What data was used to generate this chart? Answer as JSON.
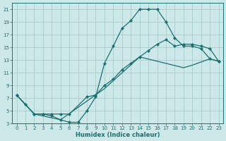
{
  "xlabel": "Humidex (Indice chaleur)",
  "bg_color": "#cce8e8",
  "grid_color": "#a8cccc",
  "line_color": "#1a7070",
  "xlim_min": -0.5,
  "xlim_max": 23.5,
  "ylim_min": 3,
  "ylim_max": 22,
  "xticks": [
    0,
    1,
    2,
    3,
    4,
    5,
    6,
    7,
    8,
    9,
    10,
    11,
    12,
    13,
    14,
    15,
    16,
    17,
    18,
    19,
    20,
    21,
    22,
    23
  ],
  "yticks": [
    3,
    5,
    7,
    9,
    11,
    13,
    15,
    17,
    19,
    21
  ],
  "curve1_x": [
    0,
    1,
    2,
    3,
    4,
    5,
    6,
    7,
    8,
    9,
    10,
    11,
    12,
    13,
    14,
    15,
    16,
    17,
    18,
    19,
    20,
    21,
    22,
    23
  ],
  "curve1_y": [
    7.5,
    6.0,
    4.5,
    4.5,
    4.2,
    3.6,
    3.2,
    3.2,
    5.0,
    7.2,
    12.5,
    15.2,
    18.0,
    19.2,
    21.0,
    21.0,
    21.0,
    19.0,
    16.5,
    15.2,
    15.2,
    14.8,
    13.2,
    12.8
  ],
  "curve2_x": [
    0,
    2,
    3,
    4,
    5,
    6,
    8,
    9,
    10,
    11,
    12,
    13,
    14,
    15,
    16,
    17,
    18,
    19,
    20,
    21,
    22,
    23
  ],
  "curve2_y": [
    7.5,
    4.5,
    4.5,
    4.5,
    4.5,
    4.5,
    7.2,
    7.5,
    9.0,
    10.0,
    11.5,
    12.5,
    13.5,
    14.5,
    15.5,
    16.2,
    15.2,
    15.5,
    15.5,
    15.2,
    14.8,
    12.8
  ],
  "curve3_x": [
    0,
    2,
    5,
    10,
    14,
    19,
    20,
    22,
    23
  ],
  "curve3_y": [
    7.5,
    4.5,
    3.6,
    8.5,
    13.5,
    11.8,
    12.2,
    13.2,
    12.8
  ]
}
